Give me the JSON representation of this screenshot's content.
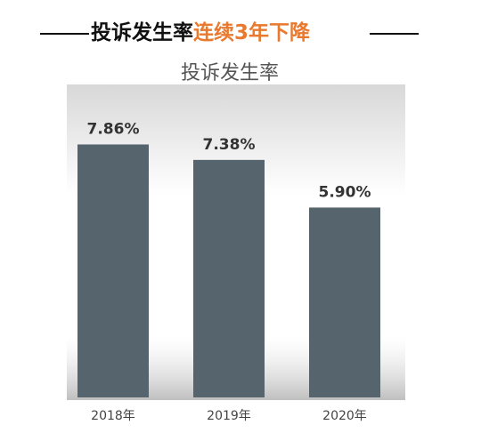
{
  "headline": {
    "lead": "投诉发生率",
    "highlight": "连续3年下降"
  },
  "chart_data": {
    "type": "bar",
    "title": "投诉发生率",
    "categories": [
      "2018年",
      "2019年",
      "2020年"
    ],
    "values": [
      7.86,
      7.38,
      5.9
    ],
    "value_labels": [
      "7.86%",
      "7.38%",
      "5.90%"
    ],
    "color": "#56646e"
  }
}
